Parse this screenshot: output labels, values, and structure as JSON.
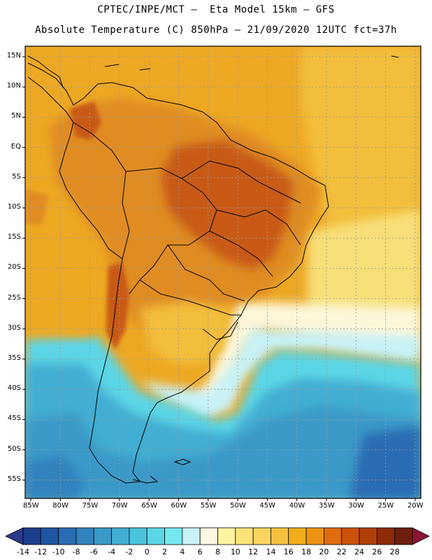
{
  "title_line1": "CPTEC/INPE/MCT –  Eta Model 15km – GFS",
  "title_line2": "Absolute Temperature (C) 850hPa – 21/09/2020 12UTC fct=37h",
  "lat_labels": [
    "15N",
    "10N",
    "5N",
    "EQ",
    "5S",
    "10S",
    "15S",
    "20S",
    "25S",
    "30S",
    "35S",
    "40S",
    "45S",
    "50S",
    "55S"
  ],
  "lon_labels": [
    "85W",
    "80W",
    "75W",
    "70W",
    "65W",
    "60W",
    "55W",
    "50W",
    "45W",
    "40W",
    "35W",
    "30W",
    "25W",
    "20W"
  ],
  "colorbar": {
    "labels": [
      "-14",
      "-12",
      "-10",
      "-8",
      "-6",
      "-4",
      "-2",
      "0",
      "2",
      "4",
      "6",
      "8",
      "10",
      "12",
      "14",
      "16",
      "18",
      "20",
      "22",
      "24",
      "26",
      "28"
    ],
    "colors": [
      "#1a3d8c",
      "#1f55a0",
      "#2a6cb3",
      "#3282bd",
      "#3a99c8",
      "#42aed3",
      "#4cc3dc",
      "#5cd6e6",
      "#74e8ef",
      "#c8f2f6",
      "#fdf8e2",
      "#fdf3a0",
      "#fbe37a",
      "#f8d55f",
      "#f4c13f",
      "#f1ad1c",
      "#ec9313",
      "#e06d0d",
      "#cc5209",
      "#b13f08",
      "#8e2a05",
      "#6e1f0c"
    ],
    "left_extend": "#2a3b8c",
    "right_extend": "#8c1530"
  },
  "palette": {
    "hot_core": "#c85a18",
    "warm": "#e08c20",
    "orange": "#eda823",
    "gold": "#f3be3a",
    "yellow": "#f8df78",
    "cream": "#fdf6d8",
    "pale_cyan": "#c8f2f6",
    "cyan": "#5cd6e6",
    "sky": "#42aed3",
    "steel": "#3a99c8",
    "deep": "#2a6cb3",
    "grid": "#9a9a9a",
    "coast": "#000000"
  }
}
